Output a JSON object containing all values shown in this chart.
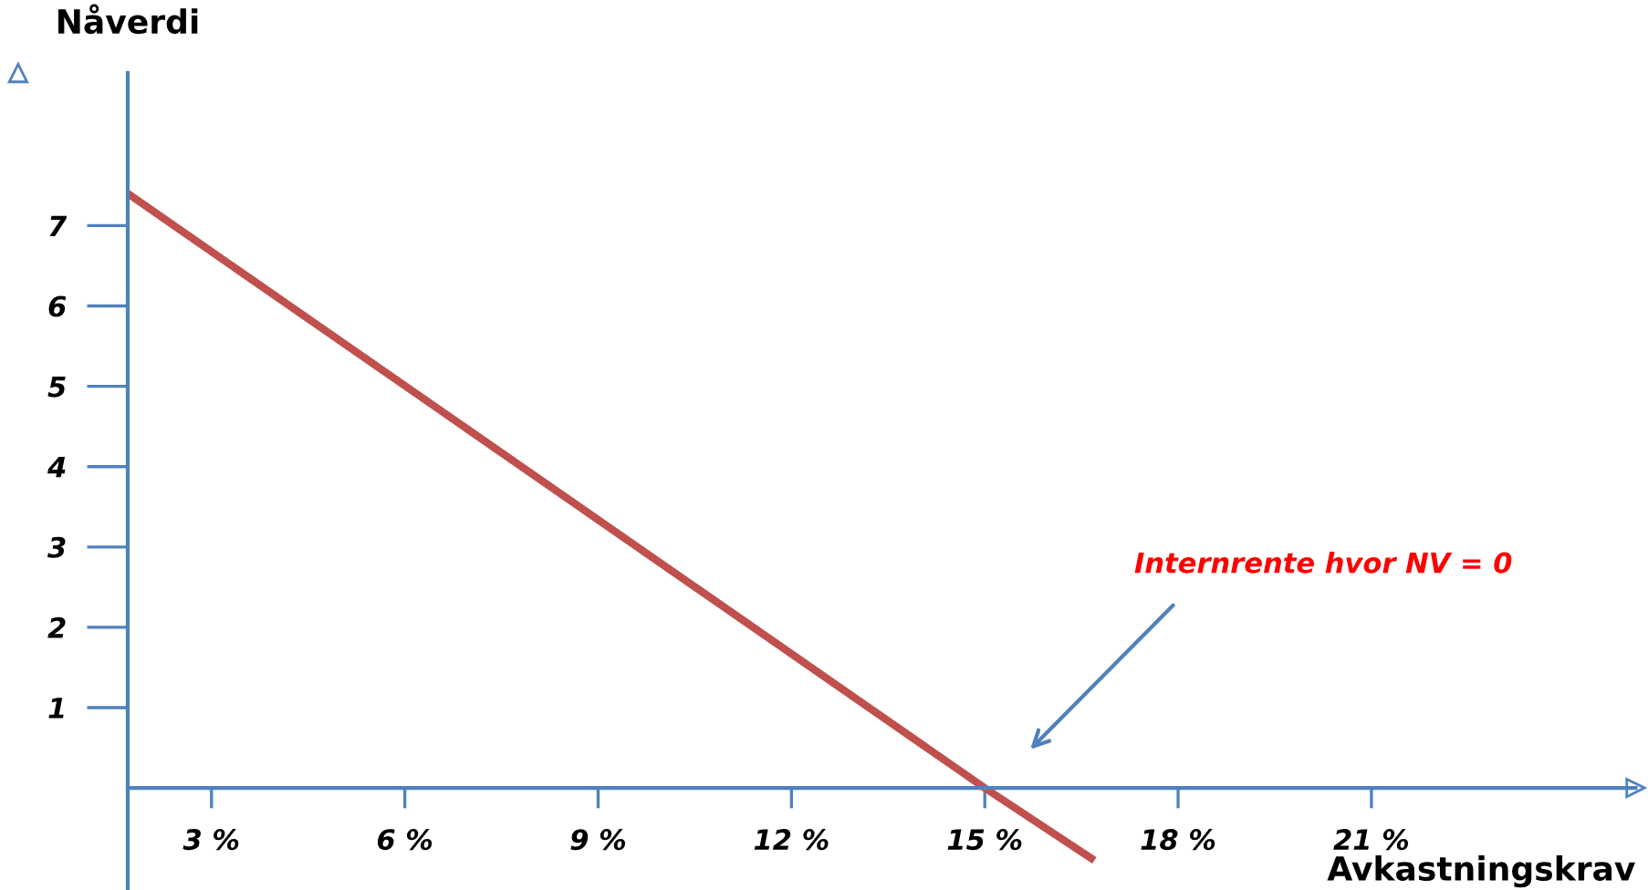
{
  "chart_data": {
    "type": "line",
    "xlabel": "Avkastningskrav",
    "ylabel": "Nåverdi",
    "x": [
      1.7,
      15,
      16.7
    ],
    "series": [
      {
        "color": "#c0504d",
        "values": [
          7.4,
          0,
          -0.9
        ]
      }
    ],
    "xlim": [
      1.7,
      25.1
    ],
    "ylim": [
      -1.27,
      8.9
    ],
    "xticks": [
      {
        "value": 3,
        "label": "3 %"
      },
      {
        "value": 6,
        "label": "6 %"
      },
      {
        "value": 9,
        "label": "9 %"
      },
      {
        "value": 12,
        "label": "12 %"
      },
      {
        "value": 15,
        "label": "15 %"
      },
      {
        "value": 18,
        "label": "18 %"
      },
      {
        "value": 21,
        "label": "21 %"
      }
    ],
    "yticks": [
      1,
      2,
      3,
      4,
      5,
      6,
      7
    ],
    "annotations": [
      "Internrente hvor NV = 0"
    ],
    "grid": false,
    "legend": false,
    "marker": "none",
    "line_style": "solid"
  }
}
